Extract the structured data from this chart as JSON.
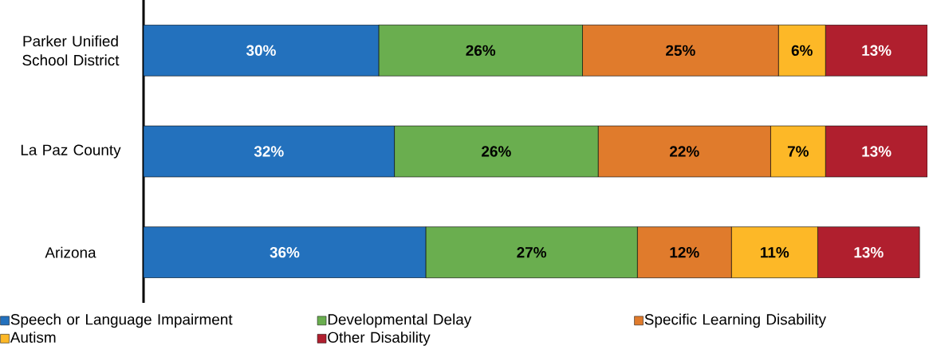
{
  "chart_data": {
    "type": "bar",
    "orientation": "horizontal",
    "stacked": true,
    "legend": "bottom",
    "tick_labels": "y",
    "categories": [
      "Parker Unified School District",
      "La Paz County",
      "Arizona"
    ],
    "series": [
      {
        "name": "Speech or Language Impairment",
        "color": "#2371bd",
        "values": [
          30,
          32,
          36
        ],
        "value_labels": [
          "30%",
          "32%",
          "36%"
        ]
      },
      {
        "name": "Developmental Delay",
        "color": "#6aae4f",
        "values": [
          26,
          26,
          27
        ],
        "value_labels": [
          "26%",
          "26%",
          "27%"
        ]
      },
      {
        "name": "Specific Learning Disability",
        "color": "#e07b2c",
        "values": [
          25,
          22,
          12
        ],
        "value_labels": [
          "25%",
          "22%",
          "12%"
        ]
      },
      {
        "name": "Autism",
        "color": "#fdb827",
        "values": [
          6,
          7,
          11
        ],
        "value_labels": [
          "6%",
          "7%",
          "11%"
        ]
      },
      {
        "name": "Other Disability",
        "color": "#b01f2e",
        "values": [
          13,
          13,
          13
        ],
        "value_labels": [
          "13%",
          "13%",
          "13%"
        ]
      }
    ]
  }
}
